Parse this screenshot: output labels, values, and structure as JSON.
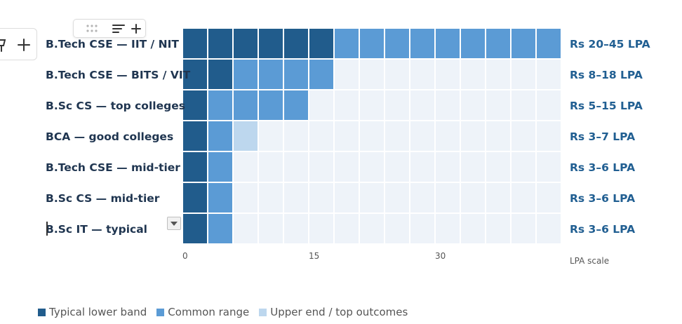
{
  "chart_data": {
    "type": "heatmap",
    "xlim": [
      0,
      45
    ],
    "cell_step": 3,
    "x_ticks": [
      0,
      15,
      30
    ],
    "x_axis_caption": "LPA scale",
    "rows": [
      {
        "label": "B.Tech CSE — IIT / NIT",
        "range_label": "Rs 20–45 LPA",
        "lower_end": 18,
        "common_end": 45,
        "upper_end": 45
      },
      {
        "label": "B.Tech CSE — BITS / VIT",
        "range_label": "Rs 8–18 LPA",
        "lower_end": 6,
        "common_end": 18,
        "upper_end": 18
      },
      {
        "label": "B.Sc CS — top colleges",
        "range_label": "Rs 5–15 LPA",
        "lower_end": 3,
        "common_end": 15,
        "upper_end": 15
      },
      {
        "label": "BCA — good colleges",
        "range_label": "Rs 3–7 LPA",
        "lower_end": 3,
        "common_end": 6,
        "upper_end": 9
      },
      {
        "label": "B.Tech CSE — mid-tier",
        "range_label": "Rs 3–6 LPA",
        "lower_end": 3,
        "common_end": 6,
        "upper_end": 6
      },
      {
        "label": "B.Sc CS — mid-tier",
        "range_label": "Rs 3–6 LPA",
        "lower_end": 3,
        "common_end": 6,
        "upper_end": 6
      },
      {
        "label": "B.Sc IT — typical",
        "range_label": "Rs 3–6 LPA",
        "lower_end": 3,
        "common_end": 6,
        "upper_end": 6
      }
    ],
    "legend": [
      {
        "key": "lower",
        "label": "Typical lower band"
      },
      {
        "key": "common",
        "label": "Common range"
      },
      {
        "key": "upper",
        "label": "Upper end / top outcomes"
      }
    ],
    "colors": {
      "lower": "#215c8c",
      "common": "#5b9bd5",
      "upper": "#bdd7ee",
      "empty": "#eef3f9"
    }
  },
  "toolbar": {
    "icons": [
      "drag-handle-icon",
      "sort-lines-icon",
      "plus-icon"
    ]
  },
  "side_pill": {
    "icons": [
      "pin-icon",
      "plus-icon"
    ]
  },
  "dropdown": {
    "icon": "caret-down-icon"
  }
}
